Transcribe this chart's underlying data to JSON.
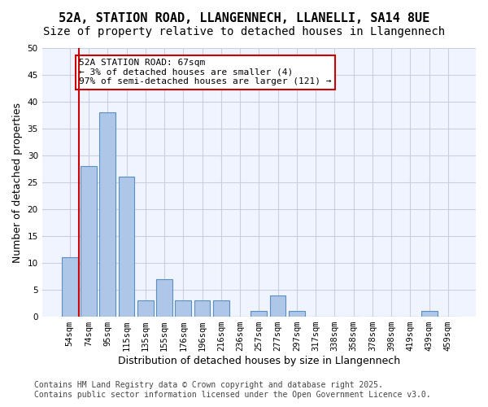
{
  "title_line1": "52A, STATION ROAD, LLANGENNECH, LLANELLI, SA14 8UE",
  "title_line2": "Size of property relative to detached houses in Llangennech",
  "xlabel": "Distribution of detached houses by size in Llangennech",
  "ylabel": "Number of detached properties",
  "categories": [
    "54sqm",
    "74sqm",
    "95sqm",
    "115sqm",
    "135sqm",
    "155sqm",
    "176sqm",
    "196sqm",
    "216sqm",
    "236sqm",
    "257sqm",
    "277sqm",
    "297sqm",
    "317sqm",
    "338sqm",
    "358sqm",
    "378sqm",
    "398sqm",
    "419sqm",
    "439sqm",
    "459sqm"
  ],
  "values": [
    11,
    28,
    38,
    26,
    3,
    7,
    3,
    3,
    3,
    0,
    1,
    4,
    1,
    0,
    0,
    0,
    0,
    0,
    0,
    1,
    0
  ],
  "bar_color": "#aec6e8",
  "bar_edge_color": "#5a8fc2",
  "annotation_text": "52A STATION ROAD: 67sqm\n← 3% of detached houses are smaller (4)\n97% of semi-detached houses are larger (121) →",
  "annotation_box_color": "#ffffff",
  "annotation_box_edge_color": "#cc0000",
  "vline_x": 0,
  "vline_color": "#cc0000",
  "ylim": [
    0,
    50
  ],
  "yticks": [
    0,
    5,
    10,
    15,
    20,
    25,
    30,
    35,
    40,
    45,
    50
  ],
  "background_color": "#f0f4ff",
  "grid_color": "#c8d0e0",
  "footer_line1": "Contains HM Land Registry data © Crown copyright and database right 2025.",
  "footer_line2": "Contains public sector information licensed under the Open Government Licence v3.0.",
  "title_fontsize": 11,
  "subtitle_fontsize": 10,
  "axis_label_fontsize": 9,
  "tick_fontsize": 7.5,
  "annotation_fontsize": 8,
  "footer_fontsize": 7
}
